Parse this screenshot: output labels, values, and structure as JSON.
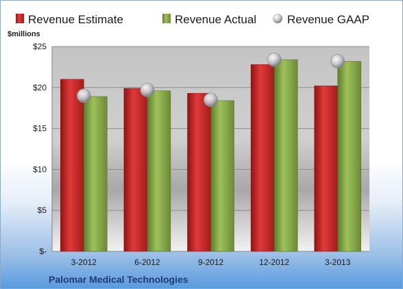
{
  "chart_data": {
    "type": "bar",
    "unit_label": "$millions",
    "categories": [
      "3-2012",
      "6-2012",
      "9-2012",
      "12-2012",
      "3-2013"
    ],
    "series": [
      {
        "name": "Revenue Estimate",
        "type": "bar",
        "color": "#d42a2a",
        "values": [
          21.0,
          19.9,
          19.3,
          22.8,
          20.2
        ]
      },
      {
        "name": "Revenue Actual",
        "type": "bar",
        "color": "#8fb04e",
        "values": [
          18.9,
          19.6,
          18.4,
          23.4,
          23.2
        ]
      },
      {
        "name": "Revenue GAAP",
        "type": "marker",
        "color": "#b9b9bf",
        "values": [
          19.0,
          19.7,
          18.5,
          23.4,
          23.2
        ]
      }
    ],
    "ylim": [
      0,
      25
    ],
    "yticks": [
      0,
      5,
      10,
      15,
      20,
      25
    ],
    "ytick_labels": [
      "$-",
      "$5",
      "$10",
      "$15",
      "$20",
      "$25"
    ],
    "grid": true,
    "legend_position": "top",
    "footer": "Palomar Medical Technologies"
  }
}
